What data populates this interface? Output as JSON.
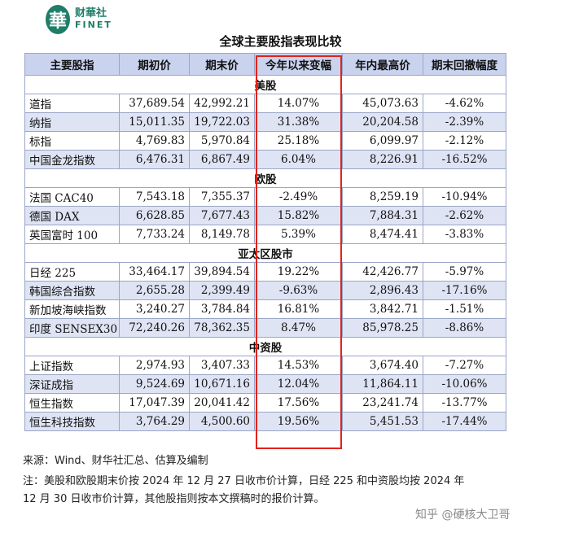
{
  "logo": {
    "mark": "華",
    "cn": "财華社",
    "en": "FINET"
  },
  "title": "全球主要股指表现比较",
  "watermark": {
    "cn": "财華社",
    "en": "FINET"
  },
  "columns": [
    "主要股指",
    "期初价",
    "期末价",
    "今年以来变幅",
    "年内最高价",
    "期末回撤幅度"
  ],
  "sections": [
    {
      "label": "美股",
      "rows": [
        [
          "道指",
          "37,689.54",
          "42,992.21",
          "14.07%",
          "45,073.63",
          "-4.62%"
        ],
        [
          "纳指",
          "15,011.35",
          "19,722.03",
          "31.38%",
          "20,204.58",
          "-2.39%"
        ],
        [
          "标指",
          "4,769.83",
          "5,970.84",
          "25.18%",
          "6,099.97",
          "-2.12%"
        ],
        [
          "中国金龙指数",
          "6,476.31",
          "6,867.49",
          "6.04%",
          "8,226.91",
          "-16.52%"
        ]
      ]
    },
    {
      "label": "欧股",
      "rows": [
        [
          "法国 CAC40",
          "7,543.18",
          "7,355.37",
          "-2.49%",
          "8,259.19",
          "-10.94%"
        ],
        [
          "德国 DAX",
          "6,628.85",
          "7,677.43",
          "15.82%",
          "7,884.31",
          "-2.62%"
        ],
        [
          "英国富时 100",
          "7,733.24",
          "8,149.78",
          "5.39%",
          "8,474.41",
          "-3.83%"
        ]
      ]
    },
    {
      "label": "亚太区股市",
      "rows": [
        [
          "日经 225",
          "33,464.17",
          "39,894.54",
          "19.22%",
          "42,426.77",
          "-5.97%"
        ],
        [
          "韩国综合指数",
          "2,655.28",
          "2,399.49",
          "-9.63%",
          "2,896.43",
          "-17.16%"
        ],
        [
          "新加坡海峡指数",
          "3,240.27",
          "3,784.84",
          "16.81%",
          "3,842.71",
          "-1.51%"
        ],
        [
          "印度 SENSEX30",
          "72,240.26",
          "78,362.35",
          "8.47%",
          "85,978.25",
          "-8.86%"
        ]
      ]
    },
    {
      "label": "中资股",
      "rows": [
        [
          "上证指数",
          "2,974.93",
          "3,407.33",
          "14.53%",
          "3,674.40",
          "-7.27%"
        ],
        [
          "深证成指",
          "9,524.69",
          "10,671.16",
          "12.04%",
          "11,864.11",
          "-10.06%"
        ],
        [
          "恒生指数",
          "17,047.39",
          "20,041.42",
          "17.56%",
          "23,241.74",
          "-13.77%"
        ],
        [
          "恒生科技指数",
          "3,764.29",
          "4,500.60",
          "19.56%",
          "5,451.53",
          "-17.44%"
        ]
      ]
    }
  ],
  "source_note": "来源：Wind、财华社汇总、估算及编制",
  "footnote_line1": "注：美股和欧股期末价按 2024 年 12 月 27 日收市价计算，日经 225 和中资股均按 2024 年",
  "footnote_line2": "12 月 30 日收市价计算，其他股指则按本文撰稿时的报价计算。",
  "zhihu_watermark": "知乎 @硬核大卫哥"
}
